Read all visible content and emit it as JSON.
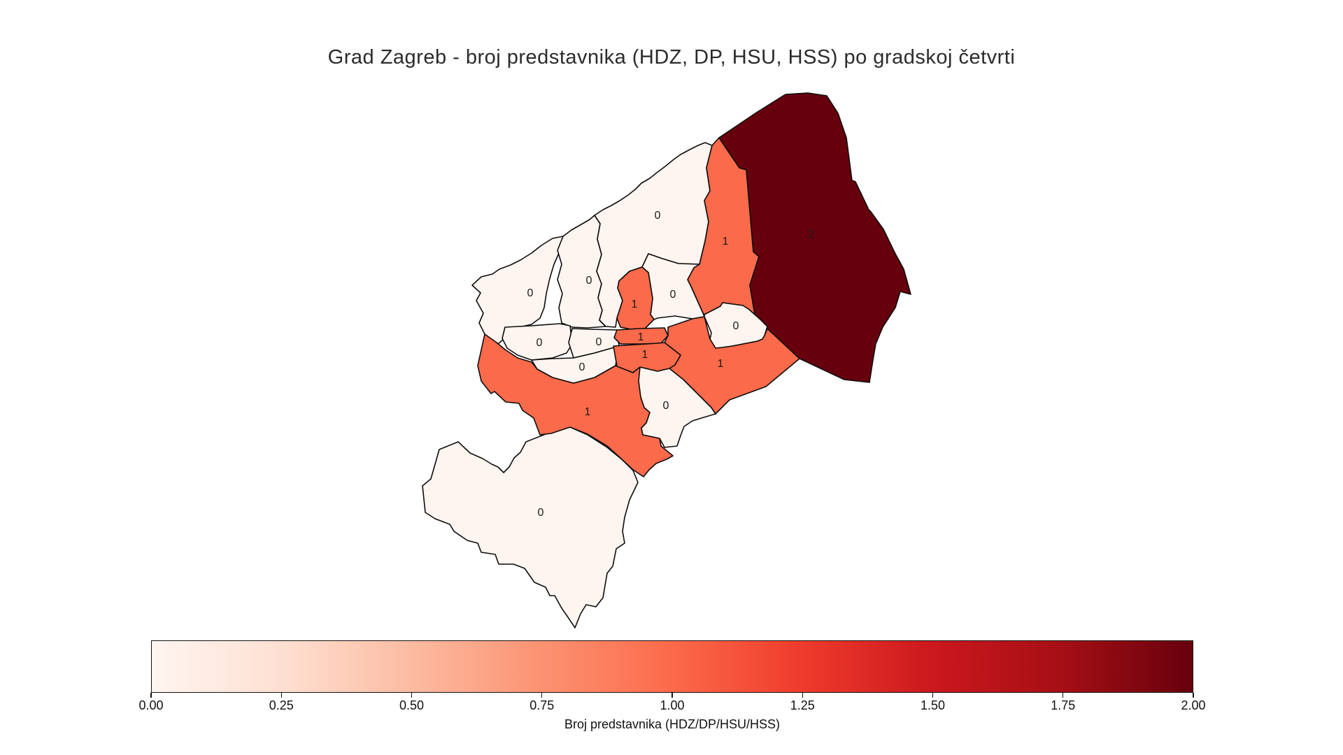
{
  "title": "Grad Zagreb - broj predstavnika (HDZ, DP, HSU, HSS) po gradskoj četvrti",
  "chart_data": {
    "type": "choropleth",
    "title": "Grad Zagreb - broj predstavnika (HDZ, DP, HSU, HSS) po gradskoj četvrti",
    "legend_position": "bottom",
    "value_colors": {
      "0": "#fff5f0",
      "1": "#fb6a4a",
      "2": "#67000d"
    },
    "border_color": "#0d0d0d",
    "regions": [
      {
        "id": "podsused_vrapce",
        "value": 0
      },
      {
        "id": "crnomerec",
        "value": 0
      },
      {
        "id": "podsljeme",
        "value": 0
      },
      {
        "id": "gornja_dubrava",
        "value": 1
      },
      {
        "id": "sesvete",
        "value": 2
      },
      {
        "id": "maksimir",
        "value": 0
      },
      {
        "id": "donja_dubrava",
        "value": 0
      },
      {
        "id": "brezovica",
        "value": 0
      },
      {
        "id": "novi_zagreb_zapad",
        "value": 1
      },
      {
        "id": "novi_zagreb_istok",
        "value": 0
      },
      {
        "id": "pescenica_zitnjak",
        "value": 1
      },
      {
        "id": "stenjevec",
        "value": 0
      },
      {
        "id": "tresnjevka_sjever",
        "value": 0
      },
      {
        "id": "tresnjevka_jug",
        "value": 0
      },
      {
        "id": "gornji_grad_medvescak",
        "value": 1
      },
      {
        "id": "donji_grad",
        "value": 1
      },
      {
        "id": "trnje",
        "value": 1
      }
    ],
    "colorbar": {
      "label": "Broj predstavnika (HDZ/DP/HSU/HSS)",
      "vmin": 0.0,
      "vmax": 2.0,
      "colormap": "Reds",
      "ticks": [
        "0.00",
        "0.25",
        "0.50",
        "0.75",
        "1.00",
        "1.25",
        "1.50",
        "1.75",
        "2.00"
      ],
      "gradient": [
        "#fff5f0",
        "#fee0d2",
        "#fcbba1",
        "#fc9272",
        "#fb6a4a",
        "#ef3b2c",
        "#cb181d",
        "#a50f15",
        "#67000d"
      ]
    }
  }
}
